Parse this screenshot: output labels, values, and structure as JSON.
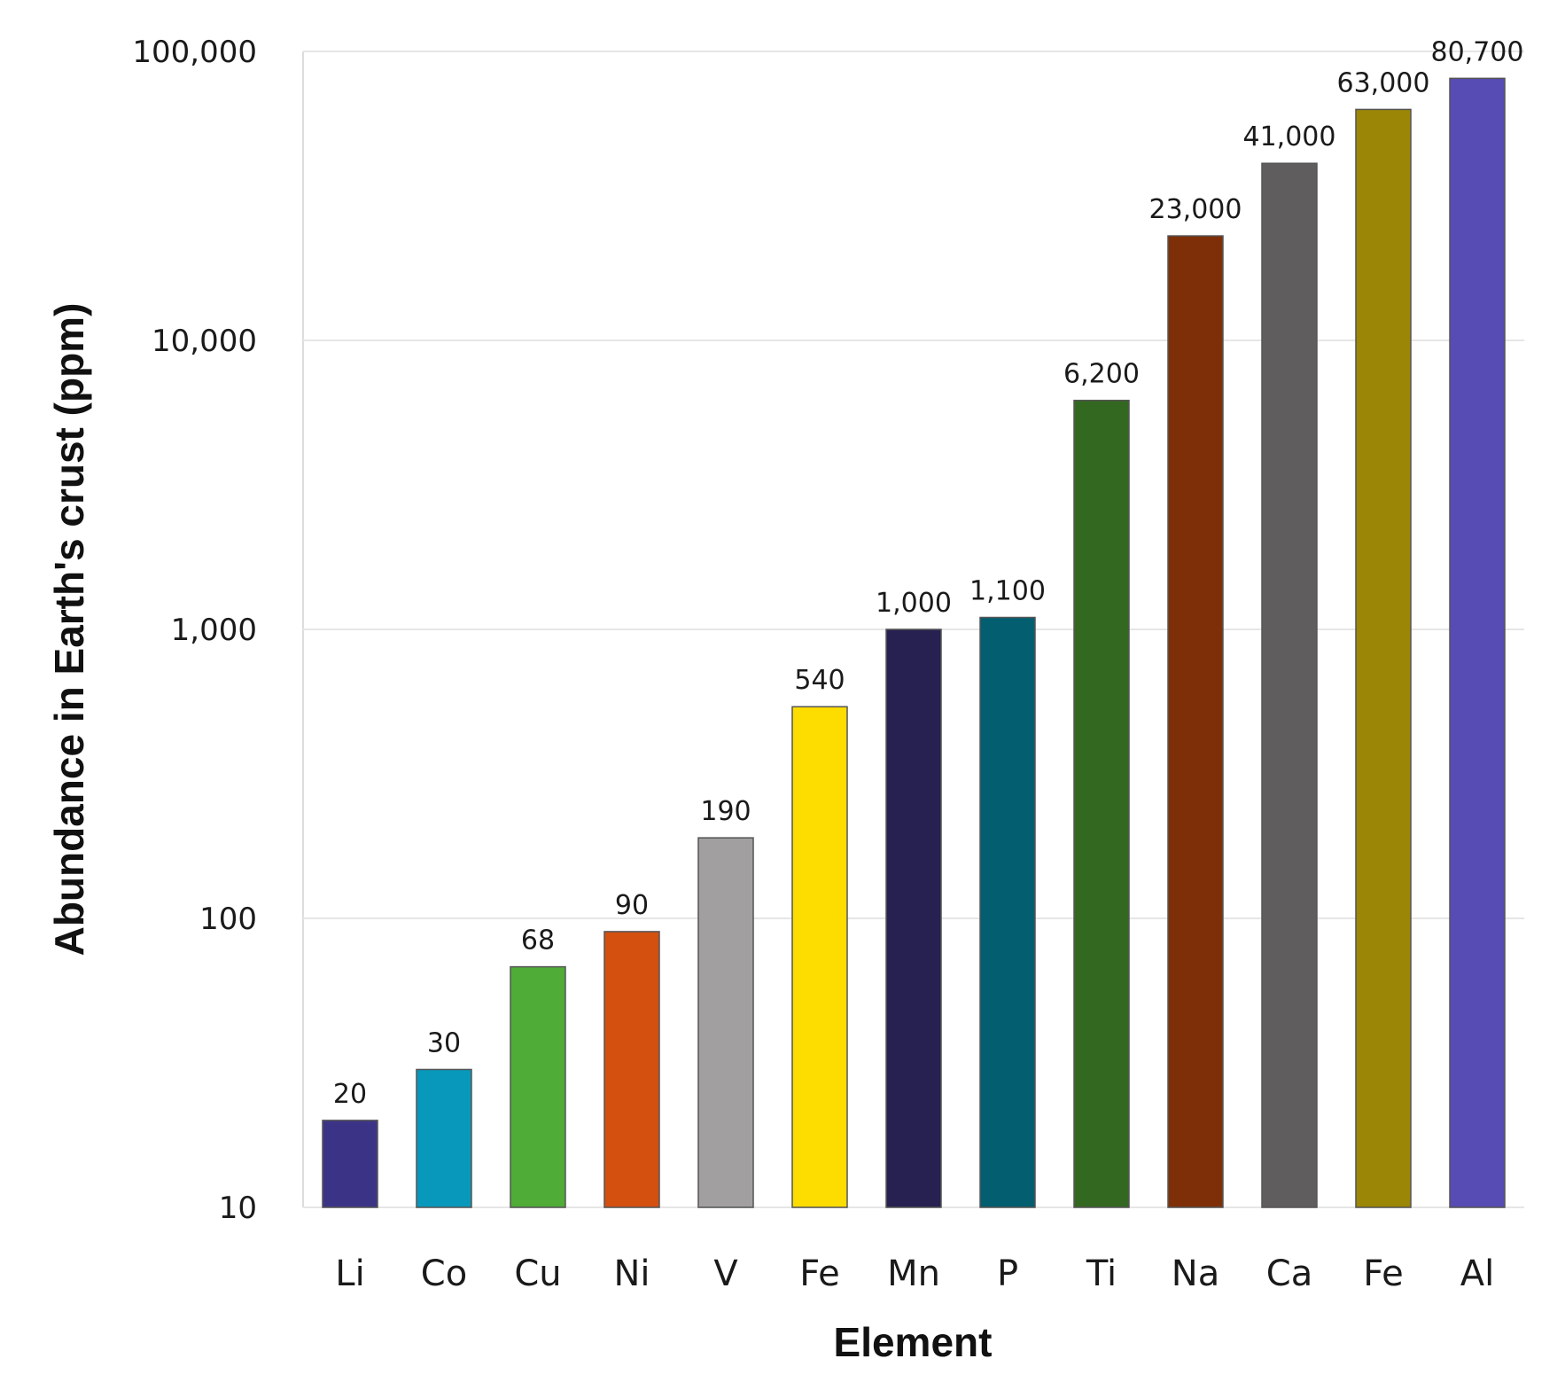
{
  "chart_data": {
    "type": "bar",
    "yscale": "log",
    "ylim": [
      10,
      100000
    ],
    "yticks": [
      "10",
      "100",
      "1,000",
      "10,000",
      "100,000"
    ],
    "ytick_values": [
      10,
      100,
      1000,
      10000,
      100000
    ],
    "xlabel": "Element",
    "ylabel": "Abundance in Earth's crust (ppm)",
    "grid": true,
    "categories": [
      "Li",
      "Co",
      "Cu",
      "Ni",
      "V",
      "Fe",
      "Mn",
      "P",
      "Ti",
      "Na",
      "Ca",
      "Fe",
      "Al"
    ],
    "values": [
      20,
      30,
      68,
      90,
      190,
      540,
      1000,
      1100,
      6200,
      23000,
      41000,
      63000,
      80700
    ],
    "data_labels": [
      "20",
      "30",
      "68",
      "90",
      "190",
      "540",
      "1,000",
      "1,100",
      "6,200",
      "23,000",
      "41,000",
      "63,000",
      "80,700"
    ],
    "colors": [
      "#3b3486",
      "#0898bb",
      "#4fac36",
      "#d4500f",
      "#a19fa0",
      "#fddc00",
      "#262151",
      "#035e6f",
      "#336820",
      "#7e2f08",
      "#605d5e",
      "#9b8605",
      "#574cb3"
    ]
  }
}
